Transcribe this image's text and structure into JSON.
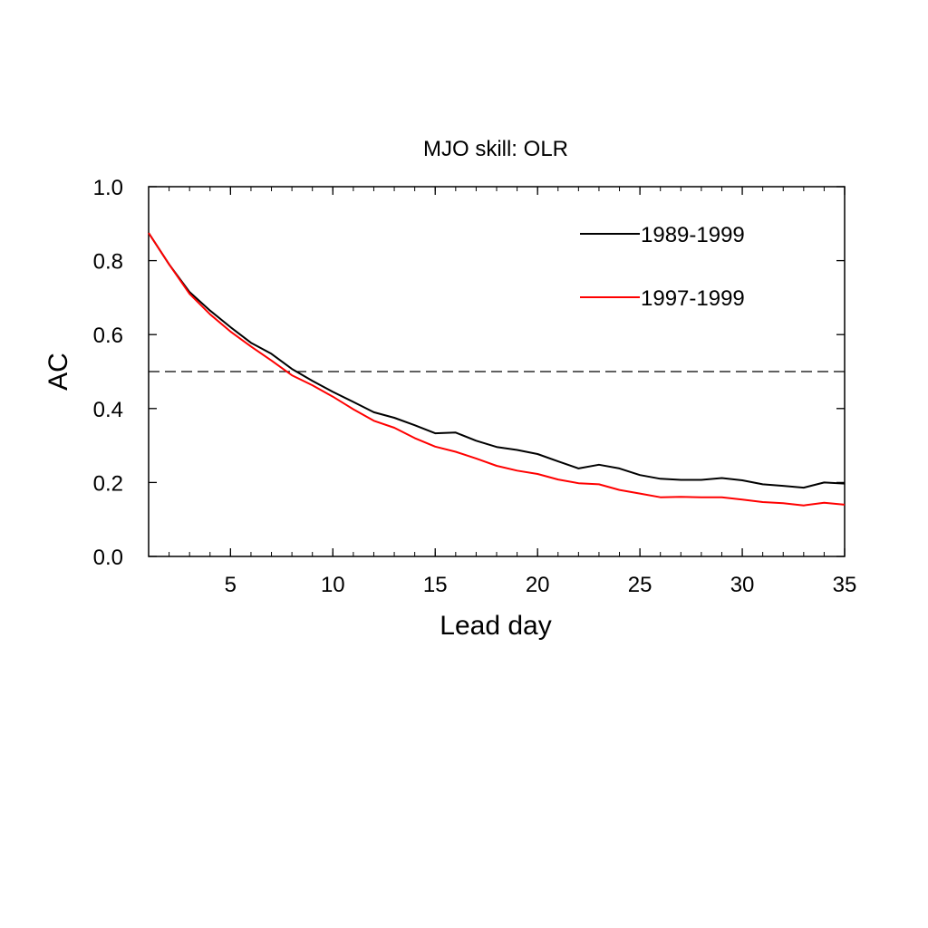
{
  "chart_data": {
    "type": "line",
    "title": "MJO skill: OLR",
    "xlabel": "Lead day",
    "ylabel": "AC",
    "xlim": [
      1,
      35
    ],
    "ylim": [
      0,
      1.0
    ],
    "x_ticks": [
      5,
      10,
      15,
      20,
      25,
      30,
      35
    ],
    "y_ticks": [
      "0.0",
      "0.2",
      "0.4",
      "0.6",
      "0.8",
      "1.0"
    ],
    "grid": false,
    "legend_position": "top-right",
    "reference_line": {
      "y": 0.5,
      "style": "dashed"
    },
    "x": [
      1,
      2,
      3,
      4,
      5,
      6,
      7,
      8,
      9,
      10,
      11,
      12,
      13,
      14,
      15,
      16,
      17,
      18,
      19,
      20,
      21,
      22,
      23,
      24,
      25,
      26,
      27,
      28,
      29,
      30,
      31,
      32,
      33,
      34,
      35
    ],
    "series": [
      {
        "name": "1989-1999",
        "color": "#000000",
        "values": [
          0.875,
          0.79,
          0.715,
          0.665,
          0.62,
          0.578,
          0.548,
          0.507,
          0.475,
          0.445,
          0.418,
          0.39,
          0.375,
          0.355,
          0.333,
          0.335,
          0.313,
          0.296,
          0.288,
          0.277,
          0.257,
          0.238,
          0.248,
          0.238,
          0.22,
          0.21,
          0.207,
          0.207,
          0.212,
          0.206,
          0.195,
          0.191,
          0.186,
          0.2,
          0.197
        ]
      },
      {
        "name": "1997-1999",
        "color": "#ff0000",
        "values": [
          0.875,
          0.79,
          0.71,
          0.655,
          0.608,
          0.568,
          0.53,
          0.49,
          0.463,
          0.432,
          0.398,
          0.367,
          0.348,
          0.32,
          0.297,
          0.283,
          0.265,
          0.245,
          0.232,
          0.223,
          0.208,
          0.198,
          0.195,
          0.18,
          0.17,
          0.16,
          0.161,
          0.16,
          0.16,
          0.154,
          0.147,
          0.144,
          0.138,
          0.145,
          0.14
        ]
      }
    ]
  }
}
